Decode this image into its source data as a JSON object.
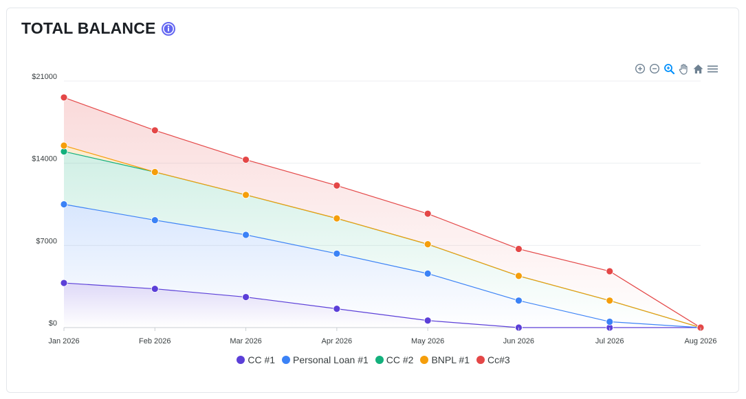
{
  "header": {
    "title": "TOTAL BALANCE",
    "info_icon": "info-icon"
  },
  "toolbar": {
    "buttons": [
      {
        "name": "zoom-in-icon"
      },
      {
        "name": "zoom-out-icon"
      },
      {
        "name": "selection-zoom-icon"
      },
      {
        "name": "pan-hand-icon"
      },
      {
        "name": "reset-home-icon"
      },
      {
        "name": "menu-icon"
      }
    ]
  },
  "colors": {
    "cc1": "#5b3fd8",
    "loan1": "#3b82f6",
    "cc2": "#13b07c",
    "bnpl1": "#f59e0b",
    "cc3": "#e44747",
    "info": "#6366f1",
    "toolbar_icon": "#6e8192",
    "toolbar_active": "#008ffb"
  },
  "chart_data": {
    "type": "area",
    "stacked": true,
    "categories": [
      "Jan 2026",
      "Feb 2026",
      "Mar 2026",
      "Apr 2026",
      "May 2026",
      "Jun 2026",
      "Jul 2026",
      "Aug 2026"
    ],
    "yticks": [
      "$0",
      "$7000",
      "$14000",
      "$21000"
    ],
    "ylim": [
      0,
      21000
    ],
    "grid": true,
    "legend_position": "bottom-center",
    "series": [
      {
        "name": "CC #1",
        "values": [
          3800,
          3300,
          2600,
          1600,
          600,
          0,
          0,
          0
        ]
      },
      {
        "name": "Personal Loan #1",
        "values": [
          6700,
          5850,
          5300,
          4700,
          4000,
          2300,
          500,
          0
        ]
      },
      {
        "name": "CC #2",
        "values": [
          4500,
          4100,
          3400,
          3000,
          2500,
          2100,
          1800,
          0
        ]
      },
      {
        "name": "BNPL #1",
        "values": [
          500,
          0,
          0,
          0,
          0,
          0,
          0,
          0
        ]
      },
      {
        "name": "Cc#3",
        "values": [
          4100,
          3550,
          3000,
          2800,
          2600,
          2300,
          2500,
          0
        ]
      }
    ]
  }
}
